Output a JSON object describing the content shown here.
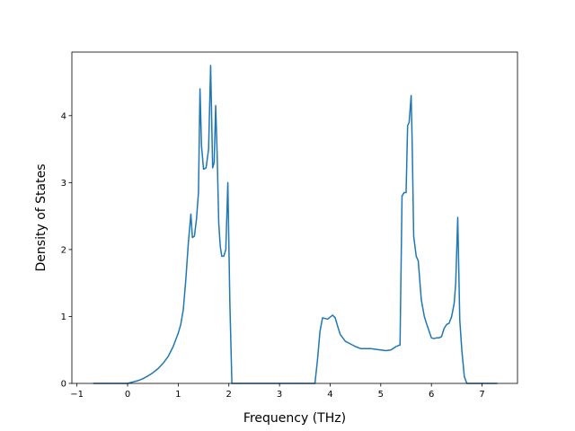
{
  "chart_data": {
    "type": "line",
    "title": "",
    "xlabel": "Frequency (THz)",
    "ylabel": "Density of States",
    "xlim": [
      -1.1,
      7.7
    ],
    "ylim": [
      0,
      4.95
    ],
    "xticks": [
      -1,
      0,
      1,
      2,
      3,
      4,
      5,
      6,
      7
    ],
    "xtick_labels": [
      "−1",
      "0",
      "1",
      "2",
      "3",
      "4",
      "5",
      "6",
      "7"
    ],
    "yticks": [
      0,
      1,
      2,
      3,
      4
    ],
    "ytick_labels": [
      "0",
      "1",
      "2",
      "3",
      "4"
    ],
    "grid": false,
    "legend": "none",
    "series": [
      {
        "color": "#1f77b4",
        "x": [
          -0.68,
          -0.4,
          -0.2,
          0.0,
          0.1,
          0.2,
          0.3,
          0.4,
          0.5,
          0.6,
          0.7,
          0.8,
          0.9,
          1.0,
          1.05,
          1.1,
          1.15,
          1.2,
          1.25,
          1.28,
          1.32,
          1.36,
          1.4,
          1.43,
          1.46,
          1.5,
          1.55,
          1.6,
          1.64,
          1.68,
          1.71,
          1.74,
          1.77,
          1.8,
          1.83,
          1.86,
          1.9,
          1.94,
          1.98,
          2.02,
          2.06,
          2.1,
          2.13,
          2.2,
          2.5,
          3.0,
          3.5,
          3.7,
          3.75,
          3.8,
          3.85,
          3.9,
          3.95,
          4.0,
          4.05,
          4.1,
          4.15,
          4.2,
          4.3,
          4.4,
          4.5,
          4.6,
          4.7,
          4.8,
          4.9,
          5.0,
          5.1,
          5.2,
          5.3,
          5.36,
          5.38,
          5.42,
          5.46,
          5.5,
          5.53,
          5.56,
          5.6,
          5.62,
          5.65,
          5.7,
          5.74,
          5.8,
          5.86,
          5.9,
          6.0,
          6.05,
          6.1,
          6.15,
          6.2,
          6.25,
          6.3,
          6.35,
          6.4,
          6.45,
          6.48,
          6.52,
          6.56,
          6.6,
          6.65,
          6.7,
          7.0,
          7.3
        ],
        "y": [
          0.0,
          0.0,
          0.0,
          0.0,
          0.02,
          0.04,
          0.07,
          0.11,
          0.16,
          0.22,
          0.3,
          0.4,
          0.55,
          0.75,
          0.88,
          1.1,
          1.55,
          2.1,
          2.53,
          2.18,
          2.2,
          2.45,
          2.85,
          4.4,
          3.55,
          3.2,
          3.22,
          3.5,
          4.75,
          3.22,
          3.3,
          4.15,
          3.4,
          2.4,
          2.05,
          1.9,
          1.9,
          2.0,
          3.0,
          1.2,
          0.0,
          0.0,
          0.0,
          0.0,
          0.0,
          0.0,
          0.0,
          0.0,
          0.35,
          0.78,
          0.98,
          0.97,
          0.96,
          0.99,
          1.02,
          0.98,
          0.85,
          0.73,
          0.63,
          0.59,
          0.55,
          0.52,
          0.52,
          0.52,
          0.51,
          0.5,
          0.49,
          0.5,
          0.55,
          0.57,
          0.57,
          2.8,
          2.85,
          2.85,
          3.85,
          3.9,
          4.3,
          3.6,
          2.2,
          1.9,
          1.83,
          1.25,
          1.0,
          0.9,
          0.68,
          0.67,
          0.68,
          0.68,
          0.7,
          0.82,
          0.88,
          0.9,
          1.0,
          1.2,
          1.5,
          2.48,
          0.95,
          0.5,
          0.1,
          0.0,
          0.0,
          0.0
        ]
      }
    ]
  }
}
